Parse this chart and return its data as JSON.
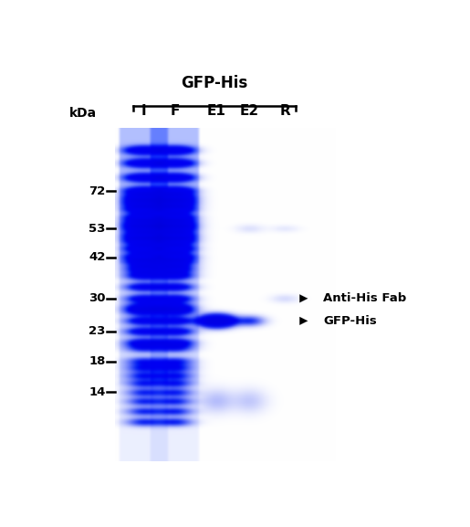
{
  "title": "GFP-His",
  "lane_labels": [
    "I",
    "F",
    "E1",
    "E2",
    "R"
  ],
  "kda_labels": [
    "72",
    "53",
    "42",
    "30",
    "23",
    "18",
    "14"
  ],
  "kda_mw": [
    72,
    53,
    42,
    30,
    23,
    18,
    14
  ],
  "annotation_arrow1": "Anti-His Fab",
  "annotation_arrow2": "GFP-His",
  "label_kda": "kDa",
  "figsize": [
    5.15,
    5.77
  ],
  "dpi": 100,
  "background_color": "#ffffff"
}
